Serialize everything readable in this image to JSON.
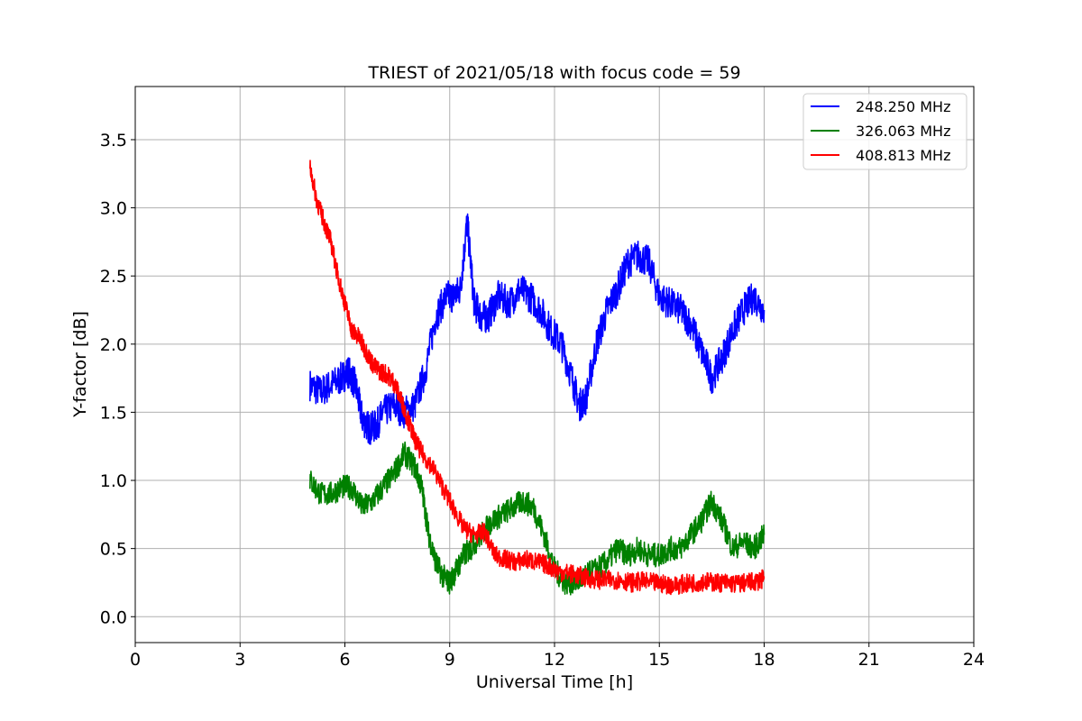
{
  "chart_data": {
    "type": "line",
    "title": "TRIEST of 2021/05/18 with focus code = 59",
    "xlabel": "Universal Time [h]",
    "ylabel": "Y-factor [dB]",
    "xlim": [
      0,
      24
    ],
    "ylim": [
      -0.19,
      3.89
    ],
    "xticks": [
      0,
      3,
      6,
      9,
      12,
      15,
      18,
      21,
      24
    ],
    "yticks": [
      0.0,
      0.5,
      1.0,
      1.5,
      2.0,
      2.5,
      3.0,
      3.5
    ],
    "xtick_labels": [
      "0",
      "3",
      "6",
      "9",
      "12",
      "15",
      "18",
      "21",
      "24"
    ],
    "ytick_labels": [
      "0.0",
      "0.5",
      "1.0",
      "1.5",
      "2.0",
      "2.5",
      "3.0",
      "3.5"
    ],
    "grid": true,
    "legend_position": "top-right",
    "series": [
      {
        "name": "248.250 MHz",
        "color": "#0000ff",
        "x": [
          5.0,
          5.3,
          5.6,
          5.9,
          6.1,
          6.3,
          6.5,
          6.7,
          6.9,
          7.1,
          7.4,
          7.7,
          8.0,
          8.3,
          8.6,
          8.9,
          9.1,
          9.3,
          9.5,
          9.7,
          9.9,
          10.1,
          10.4,
          10.7,
          11.0,
          11.3,
          11.6,
          11.9,
          12.2,
          12.5,
          12.7,
          12.9,
          13.2,
          13.5,
          13.8,
          14.1,
          14.4,
          14.7,
          15.0,
          15.3,
          15.6,
          15.9,
          16.2,
          16.5,
          16.8,
          17.1,
          17.4,
          17.7,
          18.0
        ],
        "y": [
          1.7,
          1.65,
          1.7,
          1.75,
          1.8,
          1.7,
          1.45,
          1.38,
          1.4,
          1.5,
          1.55,
          1.5,
          1.55,
          1.8,
          2.2,
          2.35,
          2.35,
          2.4,
          2.9,
          2.3,
          2.2,
          2.2,
          2.35,
          2.3,
          2.4,
          2.35,
          2.25,
          2.1,
          2.0,
          1.75,
          1.55,
          1.6,
          2.0,
          2.25,
          2.4,
          2.6,
          2.65,
          2.6,
          2.35,
          2.3,
          2.25,
          2.15,
          1.95,
          1.75,
          1.9,
          2.1,
          2.25,
          2.35,
          2.25
        ]
      },
      {
        "name": "326.063 MHz",
        "color": "#008000",
        "x": [
          5.0,
          5.3,
          5.6,
          5.9,
          6.2,
          6.5,
          6.8,
          7.1,
          7.4,
          7.7,
          8.0,
          8.2,
          8.4,
          8.6,
          8.8,
          9.0,
          9.2,
          9.4,
          9.6,
          9.9,
          10.2,
          10.5,
          10.8,
          11.1,
          11.4,
          11.7,
          12.0,
          12.3,
          12.6,
          12.9,
          13.2,
          13.5,
          13.8,
          14.1,
          14.4,
          14.7,
          15.0,
          15.3,
          15.6,
          15.9,
          16.2,
          16.5,
          16.8,
          17.1,
          17.4,
          17.7,
          18.0
        ],
        "y": [
          1.0,
          0.9,
          0.9,
          0.95,
          0.95,
          0.8,
          0.85,
          0.95,
          1.05,
          1.2,
          1.1,
          0.95,
          0.6,
          0.4,
          0.3,
          0.25,
          0.35,
          0.45,
          0.5,
          0.6,
          0.7,
          0.75,
          0.8,
          0.85,
          0.8,
          0.6,
          0.35,
          0.25,
          0.25,
          0.3,
          0.35,
          0.4,
          0.5,
          0.45,
          0.5,
          0.45,
          0.45,
          0.5,
          0.5,
          0.6,
          0.7,
          0.85,
          0.7,
          0.5,
          0.55,
          0.5,
          0.6
        ]
      },
      {
        "name": "408.813 MHz",
        "color": "#ff0000",
        "x": [
          5.0,
          5.2,
          5.4,
          5.6,
          5.8,
          6.0,
          6.2,
          6.4,
          6.6,
          6.8,
          7.0,
          7.2,
          7.4,
          7.6,
          7.8,
          8.0,
          8.2,
          8.5,
          8.8,
          9.1,
          9.4,
          9.7,
          10.0,
          10.3,
          10.6,
          10.9,
          11.2,
          11.5,
          11.8,
          12.1,
          12.4,
          12.7,
          13.0,
          13.3,
          13.6,
          13.9,
          14.2,
          14.5,
          14.8,
          15.1,
          15.4,
          15.7,
          16.0,
          16.3,
          16.6,
          16.9,
          17.2,
          17.5,
          17.8,
          18.0
        ],
        "y": [
          3.3,
          3.05,
          2.9,
          2.75,
          2.5,
          2.3,
          2.1,
          2.05,
          1.95,
          1.85,
          1.8,
          1.78,
          1.72,
          1.6,
          1.45,
          1.3,
          1.2,
          1.1,
          0.95,
          0.8,
          0.65,
          0.6,
          0.62,
          0.45,
          0.42,
          0.4,
          0.42,
          0.4,
          0.38,
          0.33,
          0.32,
          0.3,
          0.28,
          0.27,
          0.27,
          0.27,
          0.25,
          0.26,
          0.25,
          0.24,
          0.23,
          0.24,
          0.25,
          0.26,
          0.25,
          0.25,
          0.24,
          0.25,
          0.26,
          0.28
        ]
      }
    ]
  }
}
